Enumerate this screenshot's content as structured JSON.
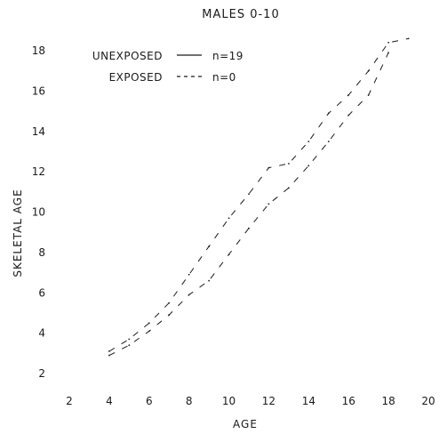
{
  "chart_data": {
    "type": "line",
    "title": "MALES 0-10",
    "xlabel": "AGE",
    "ylabel": "SKELETAL AGE",
    "xlim": [
      2,
      20
    ],
    "ylim": [
      2,
      18
    ],
    "xticks": [
      2,
      4,
      6,
      8,
      10,
      12,
      14,
      16,
      18,
      20
    ],
    "yticks": [
      2,
      4,
      6,
      8,
      10,
      12,
      14,
      16,
      18
    ],
    "grid": false,
    "legend_position": "top-left",
    "series": [
      {
        "name": "UNEXPOSED",
        "n_label": "n=19",
        "line_style": "solid",
        "band": "upper",
        "x": [
          4.0,
          5.0,
          6.0,
          7.0,
          8.0,
          9.0,
          10.0,
          11.0,
          12.0,
          13.0,
          14.0,
          15.0,
          16.0,
          17.0,
          18.0,
          19.0
        ],
        "y": [
          3.1,
          3.7,
          4.5,
          5.5,
          6.9,
          8.3,
          9.7,
          10.9,
          12.2,
          12.4,
          13.5,
          14.9,
          15.8,
          17.0,
          18.4,
          18.6
        ]
      },
      {
        "name": "UNEXPOSED",
        "line_style": "solid",
        "band": "lower",
        "x": [
          4.0,
          5.0,
          6.0,
          7.0,
          8.0,
          9.0,
          10.0,
          11.0,
          12.0,
          13.0,
          14.0,
          15.0,
          16.0,
          17.0,
          18.0
        ],
        "y": [
          2.9,
          3.4,
          4.1,
          4.9,
          5.9,
          6.6,
          7.9,
          9.2,
          10.4,
          11.2,
          12.3,
          13.5,
          14.8,
          15.8,
          17.9
        ]
      },
      {
        "name": "EXPOSED",
        "n_label": "n=0",
        "line_style": "dashed",
        "x": [],
        "y": []
      }
    ]
  }
}
